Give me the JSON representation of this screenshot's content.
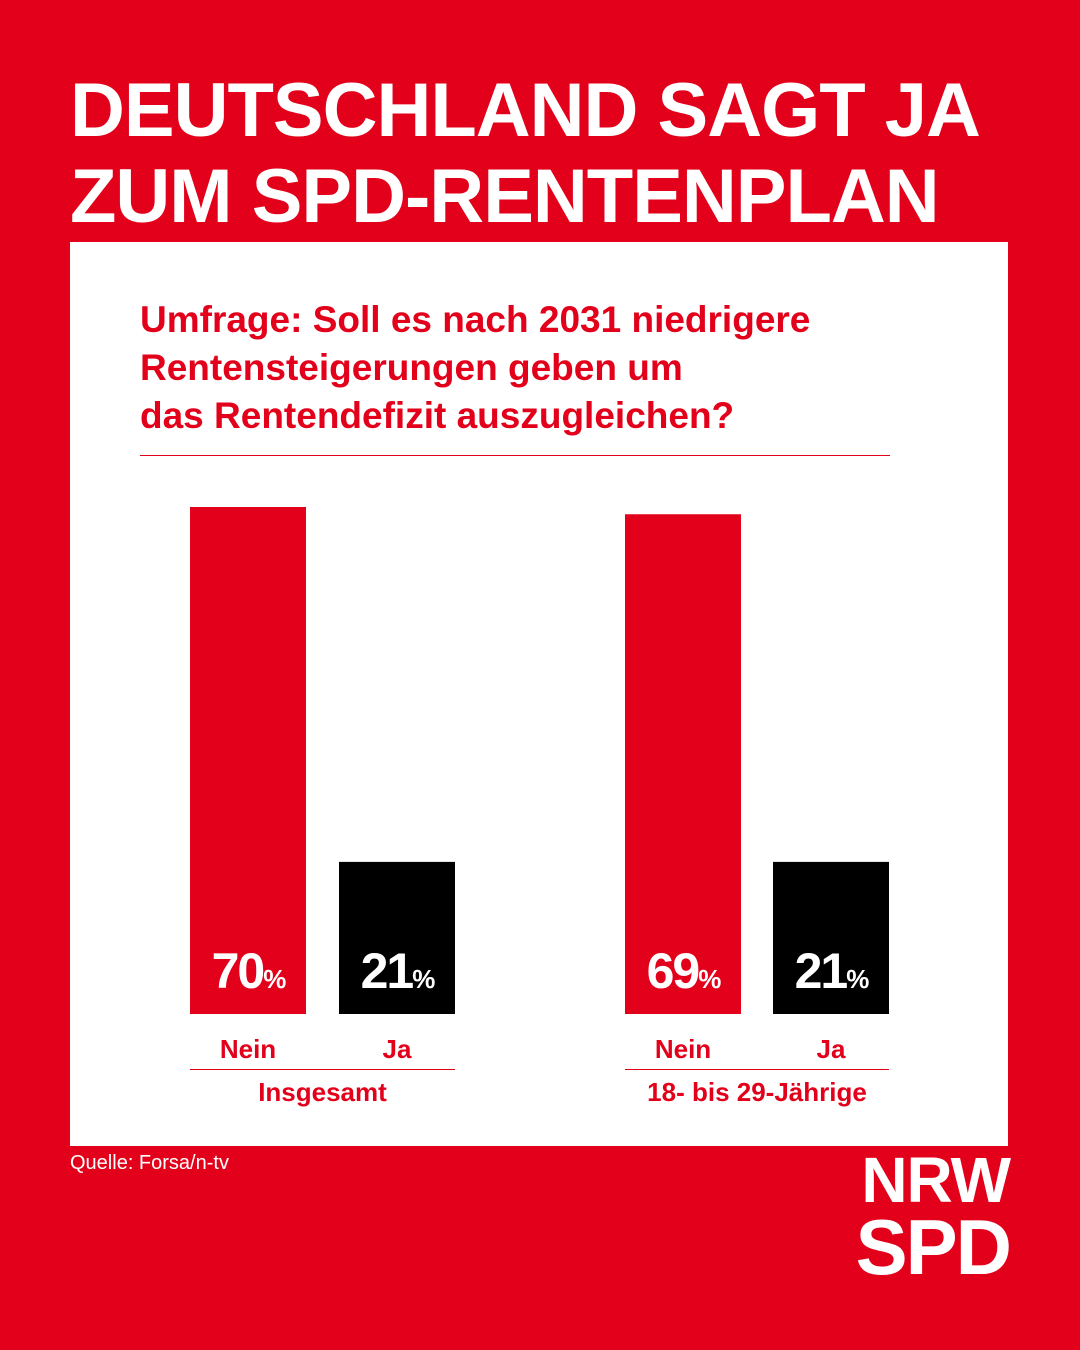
{
  "header": {
    "title_lines": [
      "DEUTSCHLAND SAGT JA",
      "ZUM SPD-RENTENPLAN"
    ]
  },
  "colors": {
    "brand_red": "#e2001a",
    "ja_black": "#000000",
    "panel": "#ffffff"
  },
  "chart_data": {
    "type": "bar",
    "title_lines": [
      "Umfrage: Soll es nach 2031 niedrigere",
      "Rentensteigerungen geben um",
      "das Rentendefizit auszugleichen?"
    ],
    "unit": "%",
    "ylim": [
      0,
      70
    ],
    "grid": false,
    "groups": [
      {
        "label": "Insgesamt",
        "bars": [
          {
            "category": "Nein",
            "value": 70,
            "color": "#e2001a"
          },
          {
            "category": "Ja",
            "value": 21,
            "color": "#000000"
          }
        ]
      },
      {
        "label": "18- bis  29-Jährige",
        "bars": [
          {
            "category": "Nein",
            "value": 69,
            "color": "#e2001a"
          },
          {
            "category": "Ja",
            "value": 21,
            "color": "#000000"
          }
        ]
      }
    ]
  },
  "footer": {
    "source": "Quelle: Forsa/n-tv",
    "logo_lines": [
      "NRW",
      "SPD"
    ]
  }
}
